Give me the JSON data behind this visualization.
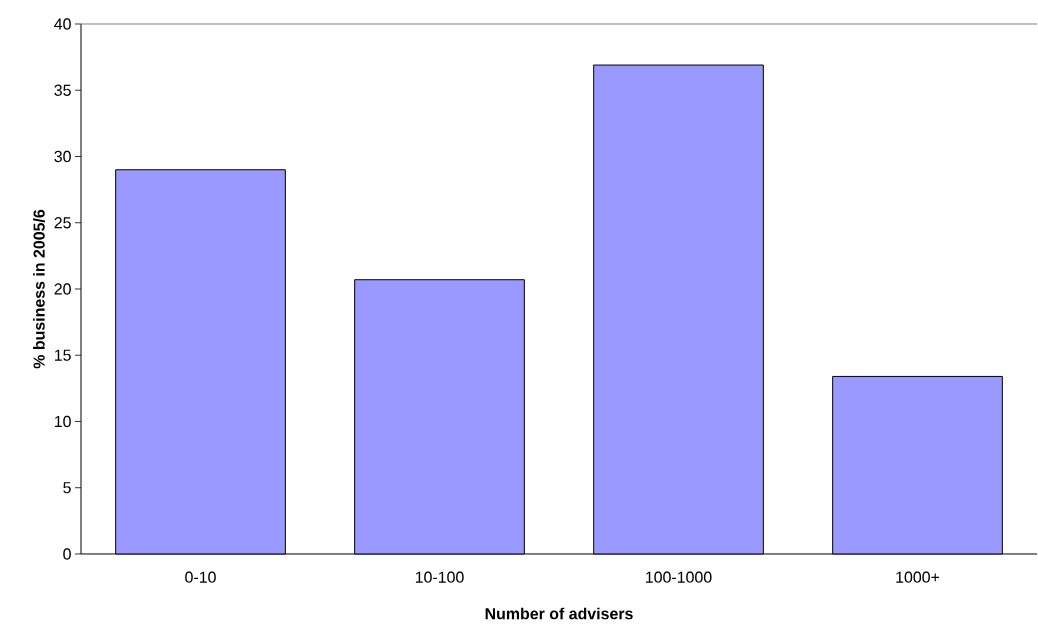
{
  "chart_data": {
    "type": "bar",
    "xlabel": "Number of advisers",
    "ylabel": "% business in 2005/6",
    "categories": [
      "0-10",
      "10-100",
      "100-1000",
      "1000+"
    ],
    "values": [
      29.0,
      20.7,
      36.9,
      13.4
    ],
    "color": "#9999ff",
    "ylim": [
      0,
      40
    ],
    "yticks": [
      0,
      5,
      10,
      15,
      20,
      25,
      30,
      35,
      40
    ]
  }
}
